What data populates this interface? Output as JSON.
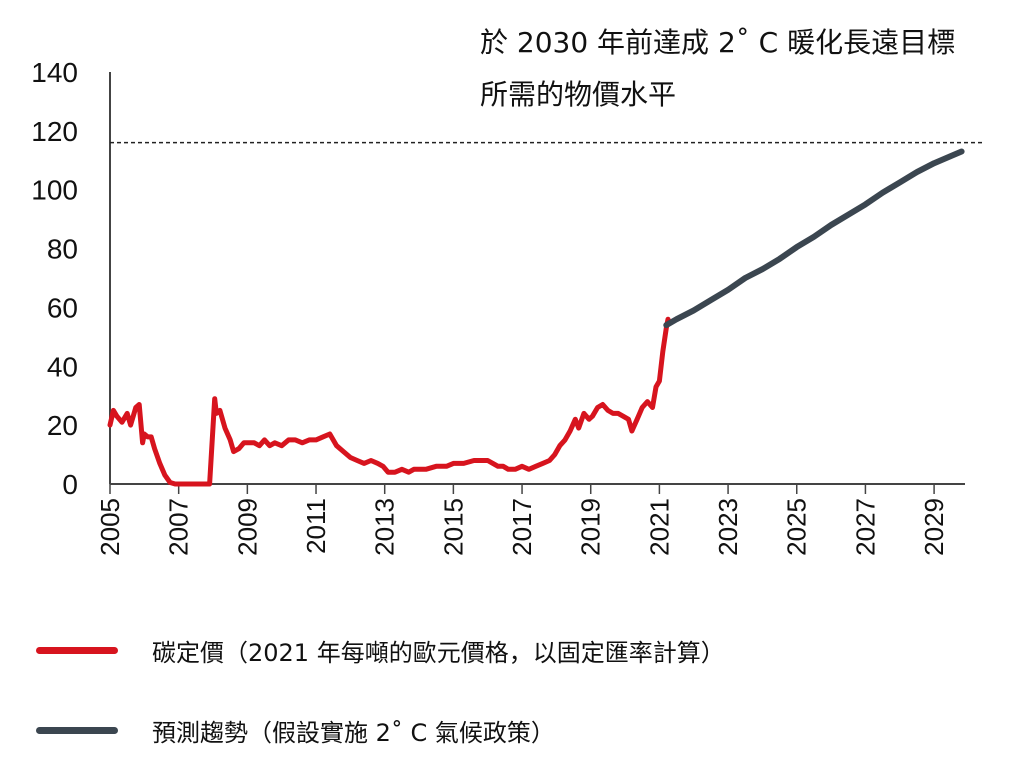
{
  "chart_data": {
    "type": "line",
    "xlabel": "",
    "ylabel": "",
    "xlim": [
      2005,
      2029.9
    ],
    "ylim": [
      0,
      140
    ],
    "yticks": [
      0,
      20,
      40,
      60,
      80,
      100,
      120,
      140
    ],
    "xticks": [
      2005,
      2007,
      2009,
      2011,
      2013,
      2015,
      2017,
      2019,
      2021,
      2023,
      2025,
      2027,
      2029
    ],
    "grid": false,
    "annotation": {
      "line1": "於 2030 年前達成 2˚ C 暖化長遠目標",
      "line2": "所需的物價水平"
    },
    "reference_line": {
      "y": 116,
      "style": "dashed"
    },
    "series": [
      {
        "name": "碳定價（2021 年每噸的歐元價格，以固定匯率計算）",
        "color": "#d7141e",
        "x": [
          2005.0,
          2005.1,
          2005.2,
          2005.35,
          2005.5,
          2005.6,
          2005.75,
          2005.85,
          2005.95,
          2006.0,
          2006.1,
          2006.2,
          2006.3,
          2006.45,
          2006.6,
          2006.75,
          2006.9,
          2007.0,
          2007.2,
          2007.6,
          2007.9,
          2008.05,
          2008.1,
          2008.2,
          2008.35,
          2008.5,
          2008.6,
          2008.75,
          2008.9,
          2009.05,
          2009.2,
          2009.35,
          2009.5,
          2009.65,
          2009.8,
          2010.0,
          2010.2,
          2010.4,
          2010.6,
          2010.8,
          2011.0,
          2011.2,
          2011.4,
          2011.6,
          2011.8,
          2012.0,
          2012.2,
          2012.4,
          2012.6,
          2012.8,
          2012.95,
          2013.1,
          2013.3,
          2013.5,
          2013.7,
          2013.85,
          2014.0,
          2014.2,
          2014.5,
          2014.8,
          2015.0,
          2015.3,
          2015.6,
          2015.9,
          2016.0,
          2016.15,
          2016.3,
          2016.45,
          2016.6,
          2016.8,
          2017.0,
          2017.2,
          2017.4,
          2017.6,
          2017.8,
          2017.95,
          2018.1,
          2018.25,
          2018.4,
          2018.55,
          2018.65,
          2018.8,
          2018.95,
          2019.05,
          2019.2,
          2019.35,
          2019.5,
          2019.65,
          2019.8,
          2019.95,
          2020.1,
          2020.2,
          2020.35,
          2020.5,
          2020.65,
          2020.8,
          2020.9,
          2021.0,
          2021.1,
          2021.2,
          2021.25
        ],
        "values": [
          20,
          25,
          23,
          21,
          24,
          20,
          26,
          27,
          14,
          17,
          16,
          16,
          12,
          7,
          3,
          0.5,
          0,
          0,
          0,
          0,
          0,
          29,
          24,
          25,
          19,
          15,
          11,
          12,
          14,
          14,
          14,
          13,
          15,
          13,
          14,
          13,
          15,
          15,
          14,
          15,
          15,
          16,
          17,
          13,
          11,
          9,
          8,
          7,
          8,
          7,
          6,
          4,
          4,
          5,
          4,
          5,
          5,
          5,
          6,
          6,
          7,
          7,
          8,
          8,
          8,
          7,
          6,
          6,
          5,
          5,
          6,
          5,
          6,
          7,
          8,
          10,
          13,
          15,
          18,
          22,
          19,
          24,
          22,
          23,
          26,
          27,
          25,
          24,
          24,
          23,
          22,
          18,
          22,
          26,
          28,
          26,
          33,
          35,
          45,
          53,
          56
        ]
      },
      {
        "name": "預測趨勢（假設實施 2˚ C 氣候政策）",
        "color": "#3b4650",
        "x": [
          2021.2,
          2021.5,
          2022.0,
          2022.5,
          2023.0,
          2023.5,
          2024.0,
          2024.5,
          2025.0,
          2025.5,
          2026.0,
          2026.5,
          2027.0,
          2027.5,
          2028.0,
          2028.5,
          2029.0,
          2029.5,
          2029.8
        ],
        "values": [
          54,
          56,
          59,
          62.5,
          66,
          70,
          73,
          76.5,
          80.5,
          84,
          88,
          91.5,
          95,
          99,
          102.5,
          106,
          109,
          111.5,
          113
        ]
      }
    ]
  },
  "legend": [
    {
      "label": "碳定價（2021 年每噸的歐元價格，以固定匯率計算）",
      "color": "#d7141e"
    },
    {
      "label": "預測趨勢（假設實施 2˚ C 氣候政策）",
      "color": "#3b4650"
    }
  ]
}
